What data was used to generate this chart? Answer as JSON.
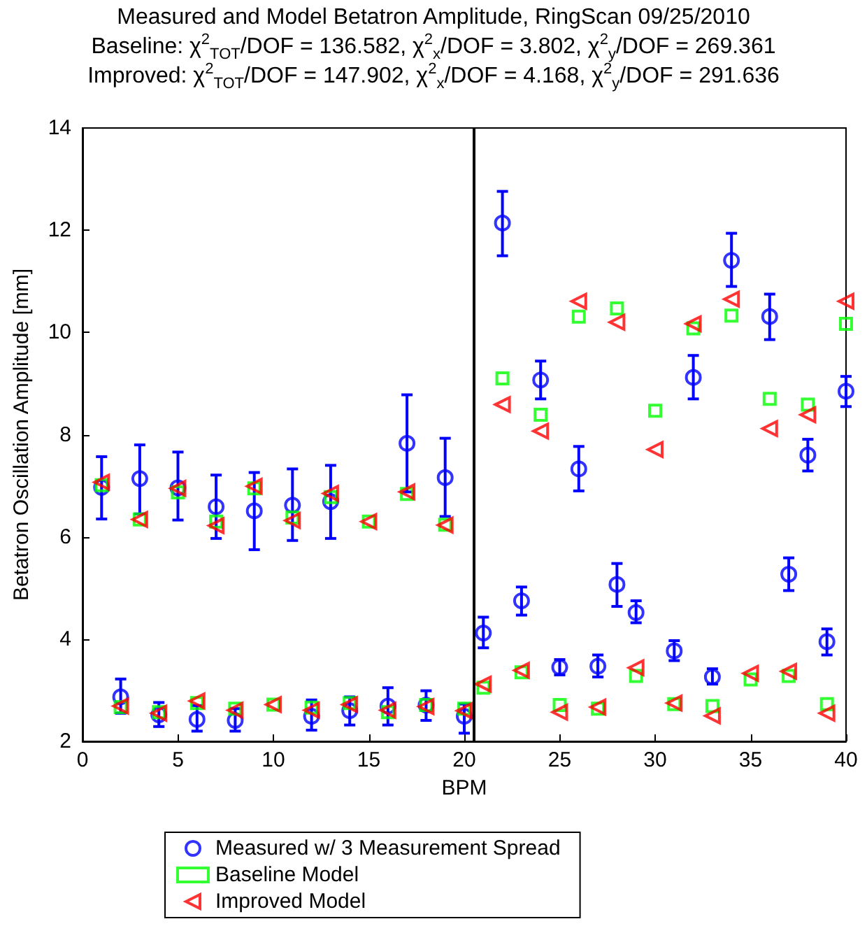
{
  "chart_data": {
    "type": "scatter",
    "title": "Measured and Model Betatron Amplitude, RingScan 09/25/2010",
    "subtitle": "Baseline: χ$^{2}$$_{TOT}$/DOF = 136.582, χ$^{2}$$_{x}$/DOF = 3.802, χ$^{2}$$_{y}$/DOF = 269.361\nImproved: χ$^{2}$$_{TOT}$/DOF = 147.902, χ$^{2}$$_{x}$/DOF = 4.168, χ$^{2}$$_{y}$/DOF = 291.636",
    "xlabel": "BPM",
    "ylabel": "Betatron Oscillation Amplitude [mm]",
    "x": [
      1,
      2,
      3,
      4,
      5,
      6,
      7,
      8,
      9,
      10,
      11,
      12,
      13,
      14,
      15,
      16,
      17,
      18,
      19,
      20,
      21,
      22,
      23,
      24,
      25,
      26,
      27,
      28,
      29,
      30,
      31,
      32,
      33,
      34,
      35,
      36,
      37,
      38,
      39,
      40
    ],
    "series": [
      {
        "name": "Measured w/ 3 Measurement Spread",
        "color": "#0000ff",
        "marker": "circle",
        "values": [
          6.97,
          2.87,
          7.14,
          2.52,
          6.96,
          2.43,
          6.59,
          2.41,
          6.51,
          null,
          6.62,
          2.49,
          6.69,
          2.6,
          null,
          2.69,
          7.83,
          2.71,
          7.16,
          2.49,
          4.12,
          12.14,
          4.75,
          9.07,
          3.45,
          7.33,
          3.47,
          5.07,
          4.52,
          null,
          3.77,
          9.12,
          3.26,
          11.41,
          null,
          10.31,
          5.27,
          7.6,
          3.95,
          8.85
        ],
        "errors": [
          [
            6.35,
            7.57
          ],
          [
            2.55,
            3.22
          ],
          [
            6.45,
            7.8
          ],
          [
            2.29,
            2.76
          ],
          [
            6.33,
            7.66
          ],
          [
            2.2,
            2.7
          ],
          [
            5.97,
            7.21
          ],
          [
            2.2,
            2.64
          ],
          [
            5.75,
            7.26
          ],
          null,
          [
            5.93,
            7.33
          ],
          [
            2.22,
            2.81
          ],
          [
            5.97,
            7.4
          ],
          [
            2.32,
            2.87
          ],
          null,
          [
            2.32,
            3.05
          ],
          [
            6.88,
            8.78
          ],
          [
            2.41,
            2.99
          ],
          [
            6.4,
            7.93
          ],
          [
            2.16,
            2.73
          ],
          [
            3.83,
            4.43
          ],
          [
            11.5,
            12.76
          ],
          [
            4.47,
            5.02
          ],
          [
            8.7,
            9.44
          ],
          [
            3.3,
            3.6
          ],
          [
            6.9,
            7.77
          ],
          [
            3.26,
            3.69
          ],
          [
            4.64,
            5.48
          ],
          [
            4.32,
            4.75
          ],
          null,
          [
            3.58,
            3.97
          ],
          [
            8.7,
            9.55
          ],
          [
            3.12,
            3.42
          ],
          [
            10.9,
            11.94
          ],
          null,
          [
            9.86,
            10.75
          ],
          [
            4.95,
            5.59
          ],
          [
            7.29,
            7.91
          ],
          [
            3.69,
            4.2
          ],
          [
            8.55,
            9.14
          ]
        ]
      },
      {
        "name": "Baseline Model",
        "color": "#00ff00",
        "marker": "square",
        "values": [
          7.01,
          2.67,
          6.34,
          2.57,
          6.87,
          2.75,
          6.3,
          2.64,
          6.95,
          2.72,
          6.38,
          2.66,
          6.78,
          2.75,
          6.3,
          2.57,
          6.84,
          2.71,
          6.24,
          2.64,
          3.05,
          9.1,
          3.35,
          8.39,
          2.71,
          10.31,
          2.64,
          10.47,
          3.28,
          8.47,
          2.73,
          10.08,
          2.69,
          10.33,
          3.21,
          8.7,
          3.28,
          8.59,
          2.73,
          10.17
        ]
      },
      {
        "name": "Improved Model",
        "color": "#ff0000",
        "marker": "triangle",
        "values": [
          7.07,
          2.69,
          6.34,
          2.55,
          6.95,
          2.79,
          6.22,
          2.61,
          6.99,
          2.72,
          6.32,
          2.61,
          6.85,
          2.72,
          6.3,
          2.61,
          6.88,
          2.68,
          6.23,
          2.6,
          3.12,
          8.59,
          3.39,
          8.07,
          2.57,
          10.61,
          2.67,
          10.2,
          3.44,
          7.71,
          2.75,
          10.17,
          2.5,
          10.65,
          3.33,
          8.12,
          3.37,
          8.39,
          2.55,
          10.61
        ]
      }
    ],
    "xlim": [
      0,
      40
    ],
    "xticks": [
      0,
      5,
      10,
      15,
      20,
      25,
      30,
      35,
      40
    ],
    "ylim": [
      2,
      14
    ],
    "yticks": [
      2,
      4,
      6,
      8,
      10,
      12,
      14
    ],
    "ref_lines": [
      {
        "axis": "x",
        "value": 20.5,
        "color": "#000000"
      }
    ],
    "grid": false,
    "legend": "bottom"
  }
}
